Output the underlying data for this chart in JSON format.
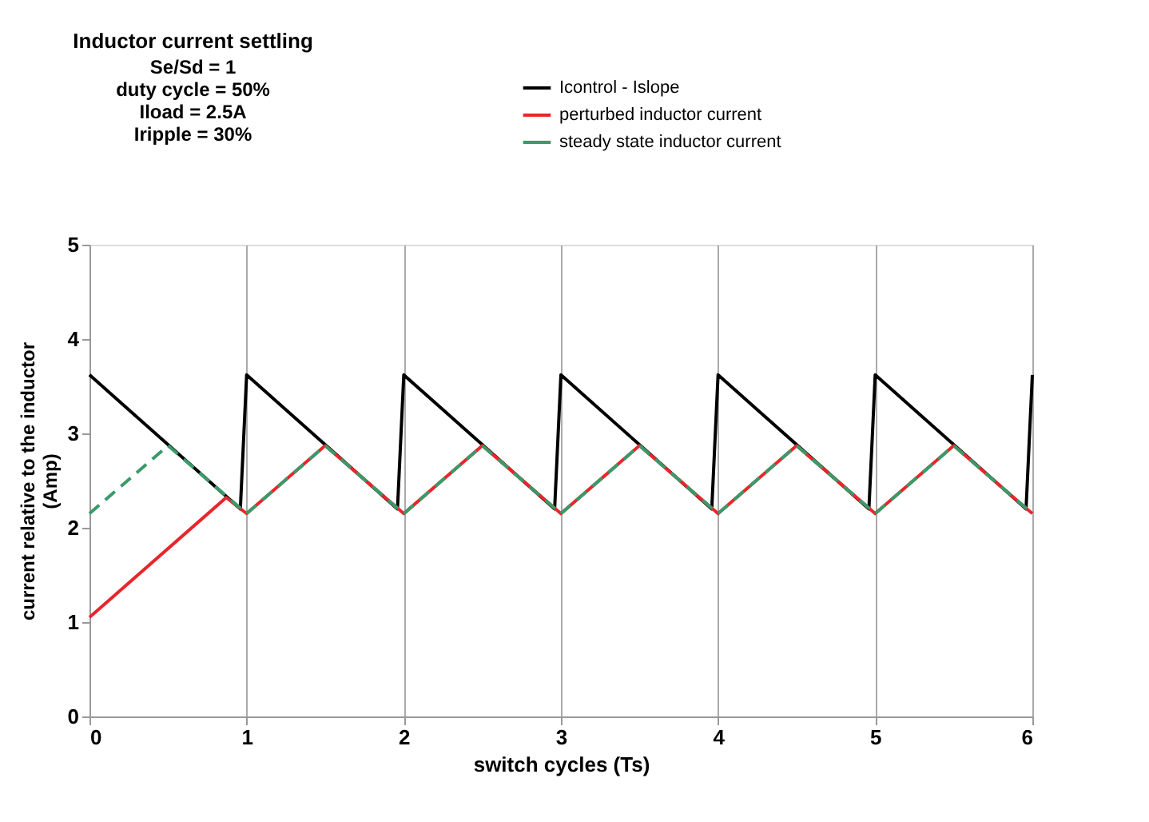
{
  "chart_data": {
    "type": "line",
    "title": "Inductor current settling",
    "subtitle": "Se/Sd = 1\nduty cycle = 50%\nIload = 2.5A\nIripple = 30%",
    "xlabel": "switch cycles (Ts)",
    "ylabel": "current relative to the inductor\n(Amp)",
    "xlim": [
      0,
      6
    ],
    "xticks": [
      0,
      1,
      2,
      3,
      4,
      5,
      6
    ],
    "ylim": [
      0,
      5
    ],
    "yticks": [
      0,
      1,
      2,
      3,
      4,
      5
    ],
    "grid": "x",
    "legend": "top right",
    "marker": "none",
    "series": [
      {
        "name": "Icontrol - Islope",
        "color": "#000000",
        "line_style": "solid",
        "x": [
          0,
          0.96,
          1,
          1.96,
          2,
          2.96,
          3,
          3.96,
          4,
          4.96,
          5,
          5.96,
          6
        ],
        "values": [
          3.62,
          2.2,
          3.62,
          2.2,
          3.62,
          2.2,
          3.62,
          2.2,
          3.62,
          2.2,
          3.62,
          2.2,
          3.62
        ]
      },
      {
        "name": "perturbed inductor current",
        "color": "#e8262b",
        "line_style": "solid",
        "x": [
          0,
          0.87,
          1,
          1.5,
          2,
          2.5,
          3,
          3.5,
          4,
          4.5,
          5,
          5.5,
          6
        ],
        "values": [
          1.05,
          2.32,
          2.15,
          2.87,
          2.15,
          2.87,
          2.15,
          2.87,
          2.15,
          2.87,
          2.15,
          2.87,
          2.15
        ]
      },
      {
        "name": "steady state inductor current",
        "color": "#3a9a6a",
        "line_style": "dashed",
        "x": [
          0,
          0.5,
          1,
          1.5,
          2,
          2.5,
          3,
          3.5,
          4,
          4.5,
          5,
          5.5,
          6
        ],
        "values": [
          2.15,
          2.87,
          2.15,
          2.87,
          2.15,
          2.87,
          2.15,
          2.87,
          2.15,
          2.87,
          2.15,
          2.87,
          2.15
        ]
      }
    ]
  }
}
